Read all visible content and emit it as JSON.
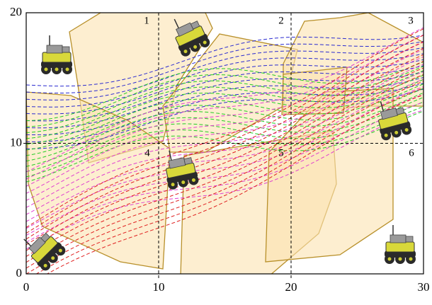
{
  "chart_data": {
    "type": "map",
    "xlim": [
      0,
      30
    ],
    "ylim": [
      0,
      20
    ],
    "xticks": [
      0,
      10,
      20,
      30
    ],
    "yticks": [
      0,
      10,
      20
    ],
    "dividers_x": [
      10,
      20
    ],
    "dividers_y": [
      10
    ],
    "regions": [
      "1",
      "2",
      "3",
      "4",
      "5",
      "6"
    ]
  }
}
